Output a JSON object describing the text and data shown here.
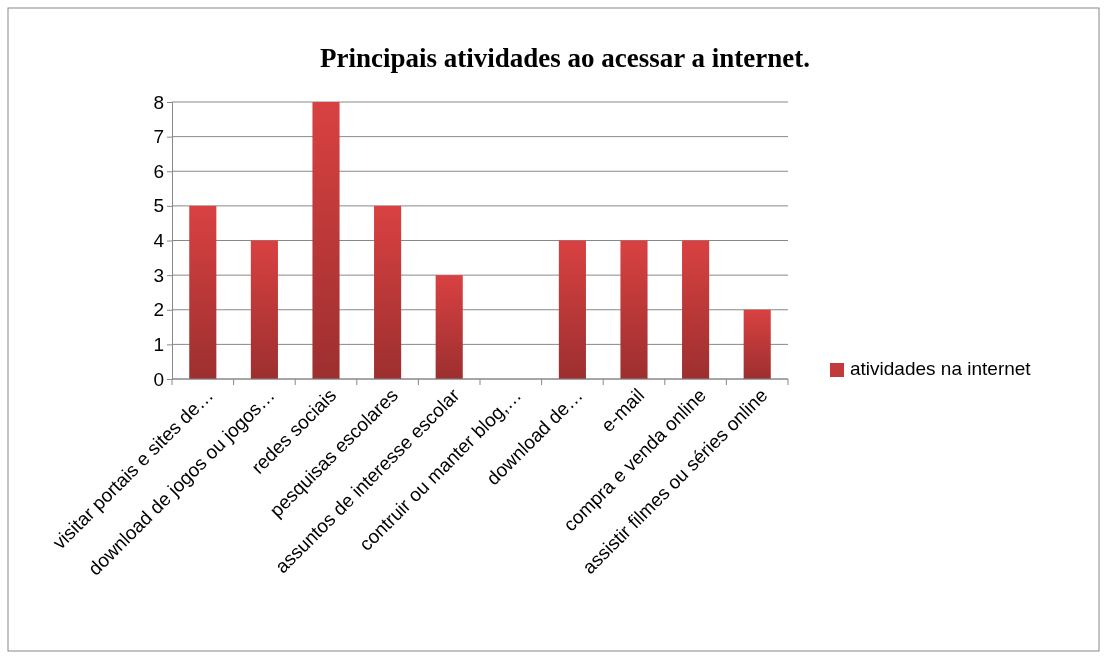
{
  "chart_data": {
    "type": "bar",
    "title": "Principais atividades ao acessar a internet.",
    "categories": [
      "visitar portais e sites de…",
      "download de jogos ou jogos…",
      "redes sociais",
      "pesquisas escolares",
      "assuntos de interesse escolar",
      "contruir ou manter blog,…",
      "download de…",
      "e-mail",
      "compra e venda online",
      "assistir filmes ou séries online"
    ],
    "series": [
      {
        "name": "atividades na internet",
        "color": "#c33a3a",
        "values": [
          5,
          4,
          8,
          5,
          3,
          0,
          4,
          4,
          4,
          2
        ]
      }
    ],
    "ylim": [
      0,
      8
    ],
    "yticks": [
      0,
      1,
      2,
      3,
      4,
      5,
      6,
      7,
      8
    ],
    "grid": "y",
    "legend": "right"
  }
}
